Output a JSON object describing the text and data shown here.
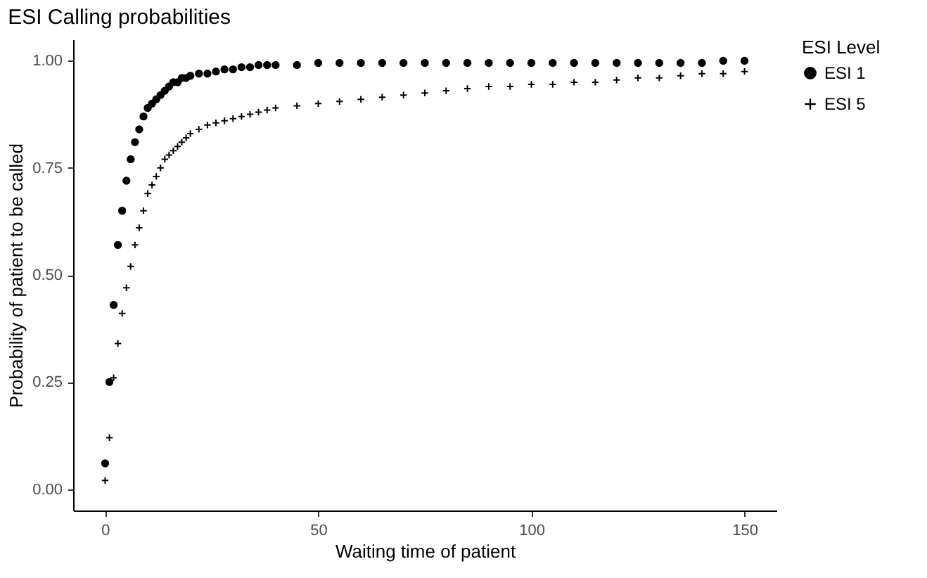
{
  "chart_data": {
    "type": "scatter",
    "title": "ESI Calling probabilities",
    "xlabel": "Waiting time of patient",
    "ylabel": "Probability of patient to be called",
    "legend_title": "ESI Level",
    "legend": "right",
    "grid": false,
    "xlim": [
      -7.5,
      157.5
    ],
    "xticks": [
      0,
      50,
      100,
      150
    ],
    "ylim": [
      -0.05,
      1.05
    ],
    "yticks": [
      {
        "value": 0,
        "label": "0.00"
      },
      {
        "value": 0.25,
        "label": "0.25"
      },
      {
        "value": 0.5,
        "label": "0.50"
      },
      {
        "value": 0.75,
        "label": "0.75"
      },
      {
        "value": 1,
        "label": "1.00"
      }
    ],
    "series": [
      {
        "name": "ESI 1",
        "color": "#000000",
        "marker": "circle",
        "x": [
          0,
          1,
          2,
          3,
          4,
          5,
          6,
          7,
          8,
          9,
          10,
          11,
          12,
          13,
          14,
          15,
          16,
          17,
          18,
          19,
          20,
          22,
          24,
          26,
          28,
          30,
          32,
          34,
          36,
          38,
          40,
          45,
          50,
          55,
          60,
          65,
          70,
          75,
          80,
          85,
          90,
          95,
          100,
          105,
          110,
          115,
          120,
          125,
          130,
          135,
          140,
          145,
          150
        ],
        "values": [
          0.06,
          0.25,
          0.43,
          0.57,
          0.65,
          0.72,
          0.77,
          0.81,
          0.84,
          0.87,
          0.89,
          0.9,
          0.91,
          0.92,
          0.93,
          0.94,
          0.95,
          0.95,
          0.96,
          0.96,
          0.965,
          0.97,
          0.97,
          0.975,
          0.98,
          0.98,
          0.985,
          0.985,
          0.99,
          0.99,
          0.99,
          0.99,
          0.995,
          0.995,
          0.995,
          0.995,
          0.995,
          0.995,
          0.995,
          0.995,
          0.995,
          0.995,
          0.995,
          0.995,
          0.995,
          0.995,
          0.995,
          0.995,
          0.995,
          0.995,
          0.995,
          1,
          1
        ]
      },
      {
        "name": "ESI 5",
        "color": "#000000",
        "marker": "cross",
        "x": [
          0,
          1,
          2,
          3,
          4,
          5,
          6,
          7,
          8,
          9,
          10,
          11,
          12,
          13,
          14,
          15,
          16,
          17,
          18,
          19,
          20,
          22,
          24,
          26,
          28,
          30,
          32,
          34,
          36,
          38,
          40,
          45,
          50,
          55,
          60,
          65,
          70,
          75,
          80,
          85,
          90,
          95,
          100,
          105,
          110,
          115,
          120,
          125,
          130,
          135,
          140,
          145,
          150
        ],
        "values": [
          0.02,
          0.12,
          0.26,
          0.34,
          0.41,
          0.47,
          0.52,
          0.57,
          0.61,
          0.65,
          0.69,
          0.71,
          0.73,
          0.75,
          0.77,
          0.78,
          0.79,
          0.8,
          0.81,
          0.82,
          0.83,
          0.84,
          0.85,
          0.855,
          0.86,
          0.865,
          0.87,
          0.875,
          0.88,
          0.885,
          0.89,
          0.895,
          0.9,
          0.905,
          0.91,
          0.915,
          0.92,
          0.925,
          0.93,
          0.935,
          0.94,
          0.94,
          0.945,
          0.945,
          0.95,
          0.95,
          0.955,
          0.96,
          0.96,
          0.965,
          0.97,
          0.97,
          0.975
        ]
      }
    ]
  }
}
